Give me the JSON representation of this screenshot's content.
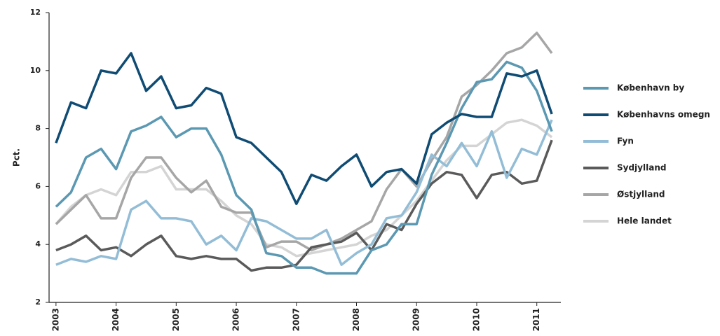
{
  "chart_data": {
    "type": "line",
    "y_label": "Pct.",
    "x": [
      2003,
      2003.25,
      2003.5,
      2003.75,
      2004,
      2004.25,
      2004.5,
      2004.75,
      2005,
      2005.25,
      2005.5,
      2005.75,
      2006,
      2006.25,
      2006.5,
      2006.75,
      2007,
      2007.25,
      2007.5,
      2007.75,
      2008,
      2008.25,
      2008.5,
      2008.75,
      2009,
      2009.25,
      2009.5,
      2009.75,
      2010,
      2010.25,
      2010.5,
      2010.75,
      2011,
      2011.25
    ],
    "xlim": [
      2002.885,
      2011.4
    ],
    "xticks": [
      2003,
      2004,
      2005,
      2006,
      2007,
      2008,
      2009,
      2010,
      2011
    ],
    "ylim": [
      2,
      12
    ],
    "yticks": [
      2,
      4,
      6,
      8,
      10,
      12
    ],
    "series": [
      {
        "name": "København by",
        "color": "#5b98b2",
        "values": [
          5.3,
          5.8,
          7.0,
          7.3,
          6.6,
          7.9,
          8.1,
          8.4,
          7.7,
          8.0,
          8.0,
          7.1,
          5.7,
          5.2,
          3.7,
          3.6,
          3.2,
          3.2,
          3.0,
          3.0,
          3.0,
          3.8,
          4.0,
          4.7,
          4.7,
          6.4,
          7.5,
          8.7,
          9.6,
          9.7,
          10.3,
          10.1,
          9.3,
          7.9
        ]
      },
      {
        "name": "Københavns omegn",
        "color": "#0f4b73",
        "values": [
          7.5,
          8.9,
          8.7,
          10.0,
          9.9,
          10.6,
          9.3,
          9.8,
          8.7,
          8.8,
          9.4,
          9.2,
          7.7,
          7.5,
          7.0,
          6.5,
          5.4,
          6.4,
          6.2,
          6.7,
          7.1,
          6.0,
          6.5,
          6.6,
          6.1,
          7.8,
          8.2,
          8.5,
          8.4,
          8.4,
          9.9,
          9.8,
          10.0,
          8.5
        ]
      },
      {
        "name": "Fyn",
        "color": "#93bdd6",
        "values": [
          3.3,
          3.5,
          3.4,
          3.6,
          3.5,
          5.2,
          5.5,
          4.9,
          4.9,
          4.8,
          4.0,
          4.3,
          3.8,
          4.9,
          4.8,
          4.5,
          4.2,
          4.2,
          4.5,
          3.3,
          3.7,
          4.0,
          4.9,
          5.0,
          5.8,
          7.1,
          6.7,
          7.5,
          6.7,
          7.9,
          6.3,
          7.3,
          7.1,
          8.3
        ]
      },
      {
        "name": "Sydjylland",
        "color": "#5a5a5a",
        "values": [
          3.8,
          4.0,
          4.3,
          3.8,
          3.9,
          3.6,
          4.0,
          4.3,
          3.6,
          3.5,
          3.6,
          3.5,
          3.5,
          3.1,
          3.2,
          3.2,
          3.3,
          3.9,
          4.0,
          4.1,
          4.4,
          3.8,
          4.7,
          4.5,
          5.4,
          6.1,
          6.5,
          6.4,
          5.6,
          6.4,
          6.5,
          6.1,
          6.2,
          7.6
        ]
      },
      {
        "name": "Østjylland",
        "color": "#a6a6a6",
        "values": [
          4.7,
          5.2,
          5.7,
          4.9,
          4.9,
          6.3,
          7.0,
          7.0,
          6.3,
          5.8,
          6.2,
          5.3,
          5.1,
          5.1,
          3.9,
          4.1,
          4.1,
          3.8,
          4.0,
          4.2,
          4.5,
          4.8,
          5.9,
          6.6,
          6.0,
          6.9,
          7.7,
          9.1,
          9.5,
          10.0,
          10.6,
          10.8,
          11.3,
          10.6
        ]
      },
      {
        "name": "Hele landet",
        "color": "#d4d4d4",
        "values": [
          4.7,
          5.3,
          5.7,
          5.9,
          5.7,
          6.5,
          6.5,
          6.7,
          5.9,
          5.9,
          5.9,
          5.5,
          5.0,
          4.7,
          4.0,
          3.9,
          3.6,
          3.7,
          3.8,
          3.9,
          4.0,
          4.3,
          4.5,
          5.0,
          5.5,
          6.2,
          6.9,
          7.4,
          7.4,
          7.8,
          8.2,
          8.3,
          8.1,
          7.7
        ]
      }
    ]
  }
}
